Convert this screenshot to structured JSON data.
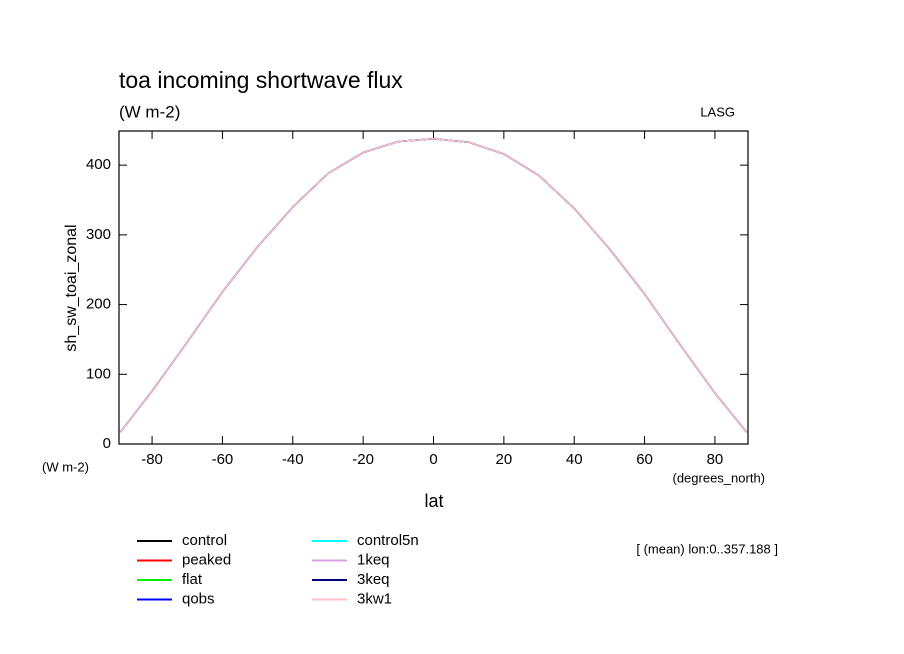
{
  "chart_data": {
    "type": "line",
    "title": "toa incoming shortwave flux",
    "subtitle": "(W m-2)",
    "source": "LASG",
    "y_label": "sh_sw_toai_zonal",
    "y_unit": "(W m-2)",
    "x_label": "lat",
    "x_unit": "(degrees_north)",
    "annotation": "[ (mean) lon:0..357.188 ]",
    "x": [
      -89,
      -80,
      -70,
      -60,
      -50,
      -40,
      -30,
      -20,
      -10,
      0,
      10,
      20,
      30,
      40,
      50,
      60,
      70,
      80,
      89
    ],
    "series": [
      {
        "name": "control",
        "color": "#000000",
        "values": [
          17,
          76,
          146,
          218,
          283,
          340,
          388,
          418,
          434,
          438,
          433,
          416,
          385,
          338,
          280,
          215,
          143,
          73,
          17
        ]
      },
      {
        "name": "peaked",
        "color": "#ff0000",
        "values": [
          17,
          76,
          146,
          218,
          283,
          340,
          388,
          418,
          434,
          438,
          433,
          416,
          385,
          338,
          280,
          215,
          143,
          73,
          17
        ]
      },
      {
        "name": "flat",
        "color": "#00ee00",
        "values": [
          17,
          76,
          146,
          218,
          283,
          340,
          388,
          418,
          434,
          438,
          433,
          416,
          385,
          338,
          280,
          215,
          143,
          73,
          17
        ]
      },
      {
        "name": "qobs",
        "color": "#0000ff",
        "values": [
          17,
          76,
          146,
          218,
          283,
          340,
          388,
          418,
          434,
          438,
          433,
          416,
          385,
          338,
          280,
          215,
          143,
          73,
          17
        ]
      },
      {
        "name": "control5n",
        "color": "#00ffff",
        "values": [
          17,
          76,
          146,
          218,
          283,
          340,
          388,
          418,
          434,
          438,
          433,
          416,
          385,
          338,
          280,
          215,
          143,
          73,
          17
        ]
      },
      {
        "name": "1keq",
        "color": "#d8a0e0",
        "values": [
          17,
          76,
          146,
          218,
          283,
          340,
          388,
          418,
          434,
          438,
          433,
          416,
          385,
          338,
          280,
          215,
          143,
          73,
          17
        ]
      },
      {
        "name": "3keq",
        "color": "#000080",
        "values": [
          17,
          76,
          146,
          218,
          283,
          340,
          388,
          418,
          434,
          438,
          433,
          416,
          385,
          338,
          280,
          215,
          143,
          73,
          17
        ]
      },
      {
        "name": "3kw1",
        "color": "#ffc0cb",
        "values": [
          17,
          76,
          146,
          218,
          283,
          340,
          388,
          418,
          434,
          438,
          433,
          416,
          385,
          338,
          280,
          215,
          143,
          73,
          17
        ]
      }
    ],
    "xlim": [
      -89.4,
      89.4
    ],
    "xticks": [
      -80,
      -60,
      -40,
      -20,
      0,
      20,
      40,
      60,
      80
    ],
    "ylim": [
      0,
      449
    ],
    "yticks": [
      0,
      100,
      200,
      300,
      400
    ]
  }
}
